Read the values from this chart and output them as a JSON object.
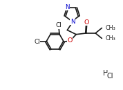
{
  "bg_color": "#ffffff",
  "bond_color": "#1a1a1a",
  "bond_lw": 1.2,
  "n_color": "#0000cc",
  "o_color": "#cc0000",
  "figsize": [
    1.78,
    1.3
  ],
  "dpi": 100,
  "xlim": [
    0,
    10
  ],
  "ylim": [
    0,
    7.3
  ]
}
